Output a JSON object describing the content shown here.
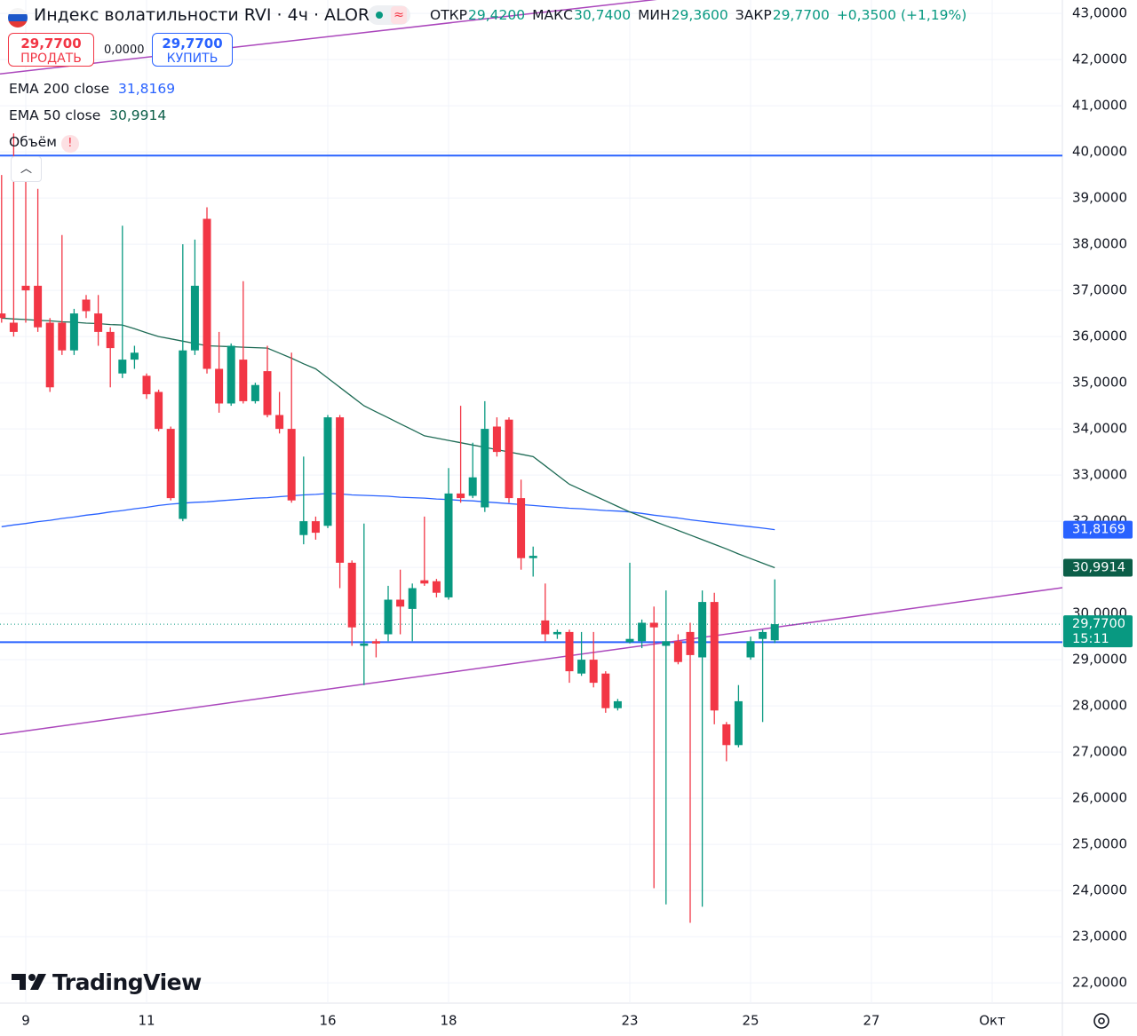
{
  "header": {
    "symbol": "Индекс волатильности RVI · 4ч · ALOR",
    "ohlc": [
      {
        "label": "ОТКР",
        "value": "29,4200"
      },
      {
        "label": "МАКС",
        "value": "30,7400"
      },
      {
        "label": "МИН",
        "value": "29,3600"
      },
      {
        "label": "ЗАКР",
        "value": "29,7700"
      }
    ],
    "change": "+0,3500 (+1,19%)"
  },
  "trade": {
    "sell_price": "29,7700",
    "sell": "ПРОДАТЬ",
    "spread": "0,0000",
    "buy_price": "29,7700",
    "buy": "КУПИТЬ"
  },
  "indicators": [
    {
      "name": "EMA 200 close",
      "value": "31,8169"
    },
    {
      "name": "EMA 50 close",
      "value": "30,9914"
    },
    {
      "name": "Объём",
      "value": "!"
    }
  ],
  "logo": "TradingView",
  "chart_data": {
    "type": "candlestick",
    "categories": [
      null,
      null,
      "9",
      null,
      null,
      null,
      null,
      null,
      null,
      null,
      null,
      null,
      "11",
      null,
      null,
      null,
      null,
      null,
      null,
      null,
      null,
      null,
      null,
      null,
      null,
      null,
      null,
      "16",
      null,
      null,
      null,
      null,
      null,
      null,
      null,
      null,
      null,
      "18",
      null,
      null,
      null,
      null,
      null,
      null,
      null,
      null,
      null,
      null,
      null,
      null,
      null,
      null,
      "23",
      null,
      null,
      null,
      null,
      null,
      null,
      null,
      null,
      null,
      "25",
      null,
      null,
      null,
      null,
      null,
      null,
      null,
      null,
      null,
      "27",
      null,
      null,
      null,
      null,
      null,
      null,
      null,
      null,
      null,
      "Окт"
    ],
    "open": [
      36.5,
      36.3,
      37.1,
      37.1,
      36.3,
      36.3,
      35.7,
      36.8,
      36.5,
      36.1,
      35.2,
      35.5,
      35.15,
      34.8,
      34.0,
      32.05,
      35.7,
      38.55,
      35.3,
      34.55,
      35.5,
      34.6,
      35.25,
      34.3,
      34.0,
      31.7,
      32.0,
      31.9,
      34.25,
      31.1,
      29.3,
      29.4,
      29.55,
      30.3,
      30.1,
      30.72,
      30.7,
      30.35,
      32.6,
      32.55,
      32.3,
      34.05,
      34.2,
      32.5,
      31.2,
      29.85,
      29.55,
      29.6,
      28.7,
      29.0,
      28.7,
      27.95,
      29.38,
      29.4,
      29.8,
      29.3,
      29.4,
      29.6,
      29.05,
      30.25,
      27.6,
      27.15,
      29.05,
      29.45,
      29.42,
      null,
      null,
      null,
      null,
      null,
      null,
      null,
      null,
      null,
      null,
      null,
      null,
      null,
      null,
      null,
      null,
      null,
      null
    ],
    "high": [
      39.5,
      40.4,
      39.8,
      39.2,
      36.4,
      38.2,
      36.6,
      36.9,
      36.9,
      36.2,
      38.4,
      35.8,
      35.2,
      34.85,
      34.05,
      38.0,
      38.1,
      38.8,
      36.1,
      35.85,
      37.2,
      35.0,
      35.8,
      34.8,
      35.65,
      33.4,
      32.1,
      34.3,
      34.3,
      31.15,
      31.95,
      29.45,
      30.6,
      30.95,
      30.65,
      32.1,
      30.75,
      33.15,
      34.5,
      33.7,
      34.6,
      34.25,
      34.25,
      32.9,
      31.45,
      30.65,
      29.65,
      29.65,
      29.6,
      29.6,
      28.75,
      28.15,
      31.1,
      29.87,
      30.15,
      30.5,
      29.55,
      29.8,
      30.5,
      30.45,
      27.65,
      28.45,
      29.5,
      29.65,
      30.74,
      null,
      null,
      null,
      null,
      null,
      null,
      null,
      null,
      null,
      null,
      null,
      null,
      null,
      null,
      null,
      null,
      null,
      null
    ],
    "low": [
      36.3,
      36.0,
      36.3,
      36.1,
      34.8,
      35.6,
      35.6,
      36.4,
      35.8,
      34.9,
      35.1,
      35.3,
      34.65,
      33.95,
      32.45,
      32.0,
      35.6,
      35.2,
      34.35,
      34.5,
      34.55,
      34.55,
      34.25,
      33.9,
      32.4,
      31.5,
      31.6,
      31.85,
      30.55,
      29.3,
      28.45,
      29.05,
      29.4,
      29.55,
      29.4,
      30.6,
      30.35,
      30.3,
      32.4,
      32.5,
      32.2,
      33.4,
      32.4,
      30.95,
      30.8,
      29.4,
      29.45,
      28.5,
      28.65,
      28.4,
      27.85,
      27.9,
      29.35,
      29.25,
      24.05,
      23.7,
      28.9,
      23.3,
      23.65,
      27.6,
      26.8,
      27.1,
      29.0,
      27.65,
      29.36,
      null,
      null,
      null,
      null,
      null,
      null,
      null,
      null,
      null,
      null,
      null,
      null,
      null,
      null,
      null,
      null,
      null,
      null
    ],
    "close": [
      36.4,
      36.1,
      37.0,
      36.2,
      34.9,
      35.7,
      36.5,
      36.55,
      36.1,
      35.75,
      35.5,
      35.65,
      34.75,
      34.0,
      32.5,
      35.7,
      37.1,
      35.3,
      34.55,
      35.8,
      34.6,
      34.95,
      34.3,
      34.0,
      32.45,
      32.0,
      31.75,
      34.25,
      31.1,
      29.7,
      29.35,
      29.35,
      30.3,
      30.15,
      30.55,
      30.65,
      30.45,
      32.6,
      32.5,
      32.95,
      34.0,
      33.5,
      32.5,
      31.2,
      31.25,
      29.55,
      29.6,
      28.75,
      29.0,
      28.5,
      27.95,
      28.1,
      29.45,
      29.8,
      29.7,
      29.4,
      28.95,
      29.1,
      30.25,
      27.9,
      27.15,
      28.1,
      29.4,
      29.6,
      29.77,
      null,
      null,
      null,
      null,
      null,
      null,
      null,
      null,
      null,
      null,
      null,
      null,
      null,
      null,
      null,
      null,
      null,
      null
    ],
    "up_color": "#089981",
    "down_color": "#f23645",
    "series": [
      {
        "name": "EMA 200 close",
        "color": "#2962ff",
        "values": [
          31.88,
          31.92,
          31.95,
          31.99,
          32.02,
          32.06,
          32.09,
          32.13,
          32.16,
          32.2,
          32.23,
          32.27,
          32.3,
          32.34,
          32.37,
          32.39,
          32.41,
          32.42,
          32.44,
          32.46,
          32.48,
          32.5,
          32.51,
          32.53,
          32.55,
          32.57,
          32.58,
          32.6,
          32.59,
          32.57,
          32.56,
          32.55,
          32.54,
          32.52,
          32.51,
          32.5,
          32.48,
          32.47,
          32.45,
          32.44,
          32.42,
          32.4,
          32.38,
          32.36,
          32.34,
          32.32,
          32.3,
          32.28,
          32.27,
          32.25,
          32.23,
          32.22,
          32.2,
          32.17,
          32.13,
          32.1,
          32.07,
          32.03,
          32.0,
          31.97,
          31.94,
          31.91,
          31.88,
          31.85,
          31.8169,
          null,
          null,
          null,
          null,
          null,
          null,
          null,
          null,
          null,
          null,
          null,
          null,
          null,
          null,
          null,
          null,
          null,
          null
        ]
      },
      {
        "name": "EMA 50 close",
        "color": "#1e6b55",
        "values": [
          36.4,
          36.38,
          36.37,
          36.35,
          36.34,
          36.32,
          36.31,
          36.29,
          36.28,
          36.26,
          36.25,
          36.17,
          36.08,
          36.0,
          35.95,
          35.9,
          35.85,
          35.8,
          35.79,
          35.78,
          35.77,
          35.76,
          35.75,
          35.64,
          35.53,
          35.41,
          35.3,
          35.1,
          34.9,
          34.7,
          34.5,
          34.37,
          34.24,
          34.11,
          33.98,
          33.85,
          33.8,
          33.75,
          33.7,
          33.65,
          33.6,
          33.55,
          33.5,
          33.45,
          33.4,
          33.2,
          33.0,
          32.8,
          32.68,
          32.56,
          32.44,
          32.32,
          32.2,
          32.1,
          32.0,
          31.9,
          31.8,
          31.7,
          31.6,
          31.5,
          31.4,
          31.29,
          31.19,
          31.09,
          30.9914,
          null,
          null,
          null,
          null,
          null,
          null,
          null,
          null,
          null,
          null,
          null,
          null,
          null,
          null,
          null,
          null,
          null,
          null
        ]
      }
    ],
    "hlines": [
      39.92,
      29.38
    ],
    "hline_color": "#2962ff",
    "trendlines": [
      {
        "values": [
          27.38,
          30.56
        ]
      },
      {
        "values": [
          41.69,
          44.3
        ]
      }
    ],
    "trendline_color": "#ab47bc",
    "price_labels": [
      {
        "value": 31.8169,
        "label": "31,8169",
        "color": "#2962ff"
      },
      {
        "value": 30.9914,
        "label": "30,9914",
        "color": "#0b5e48"
      },
      {
        "value": 29.77,
        "label": "29,7700",
        "sub": "15:11",
        "color": "#089981"
      }
    ],
    "ylim": [
      21.56,
      43.29
    ],
    "yticks": [
      {
        "value": 22,
        "label": "22,0000"
      },
      {
        "value": 23,
        "label": "23,0000"
      },
      {
        "value": 24,
        "label": "24,0000"
      },
      {
        "value": 25,
        "label": "25,0000"
      },
      {
        "value": 26,
        "label": "26,0000"
      },
      {
        "value": 27,
        "label": "27,0000"
      },
      {
        "value": 28,
        "label": "28,0000"
      },
      {
        "value": 29,
        "label": "29,0000"
      },
      {
        "value": 30,
        "label": "30,0000"
      },
      {
        "value": 31,
        "label": "31,0000"
      },
      {
        "value": 32,
        "label": "32,0000"
      },
      {
        "value": 33,
        "label": "33,0000"
      },
      {
        "value": 34,
        "label": "34,0000"
      },
      {
        "value": 35,
        "label": "35,0000"
      },
      {
        "value": 36,
        "label": "36,0000"
      },
      {
        "value": 37,
        "label": "37,0000"
      },
      {
        "value": 38,
        "label": "38,0000"
      },
      {
        "value": 39,
        "label": "39,0000"
      },
      {
        "value": 40,
        "label": "40,0000"
      },
      {
        "value": 41,
        "label": "41,0000"
      },
      {
        "value": 42,
        "label": "42,0000"
      },
      {
        "value": 43,
        "label": "43,0000"
      }
    ],
    "grid": true
  }
}
